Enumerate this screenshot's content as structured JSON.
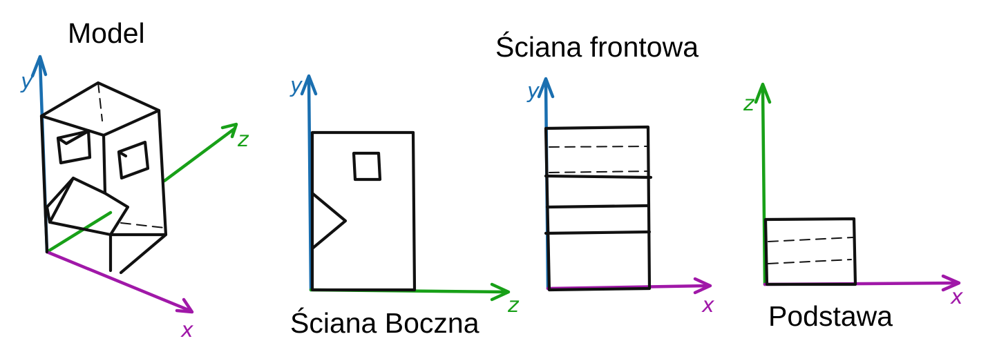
{
  "titles": {
    "model": "Model",
    "front": "Ściana frontowa",
    "side": "Ściana Boczna",
    "base": "Podstawa"
  },
  "axis_labels": {
    "model_y": "y",
    "model_z": "z",
    "model_x": "x",
    "side_y": "y",
    "side_z": "z",
    "front_y": "y",
    "front_x": "x",
    "base_z": "z",
    "base_x": "x"
  },
  "colors": {
    "y_axis": "#1a6fb0",
    "z_axis": "#18a018",
    "x_axis": "#a018a8",
    "ink": "#111111"
  }
}
